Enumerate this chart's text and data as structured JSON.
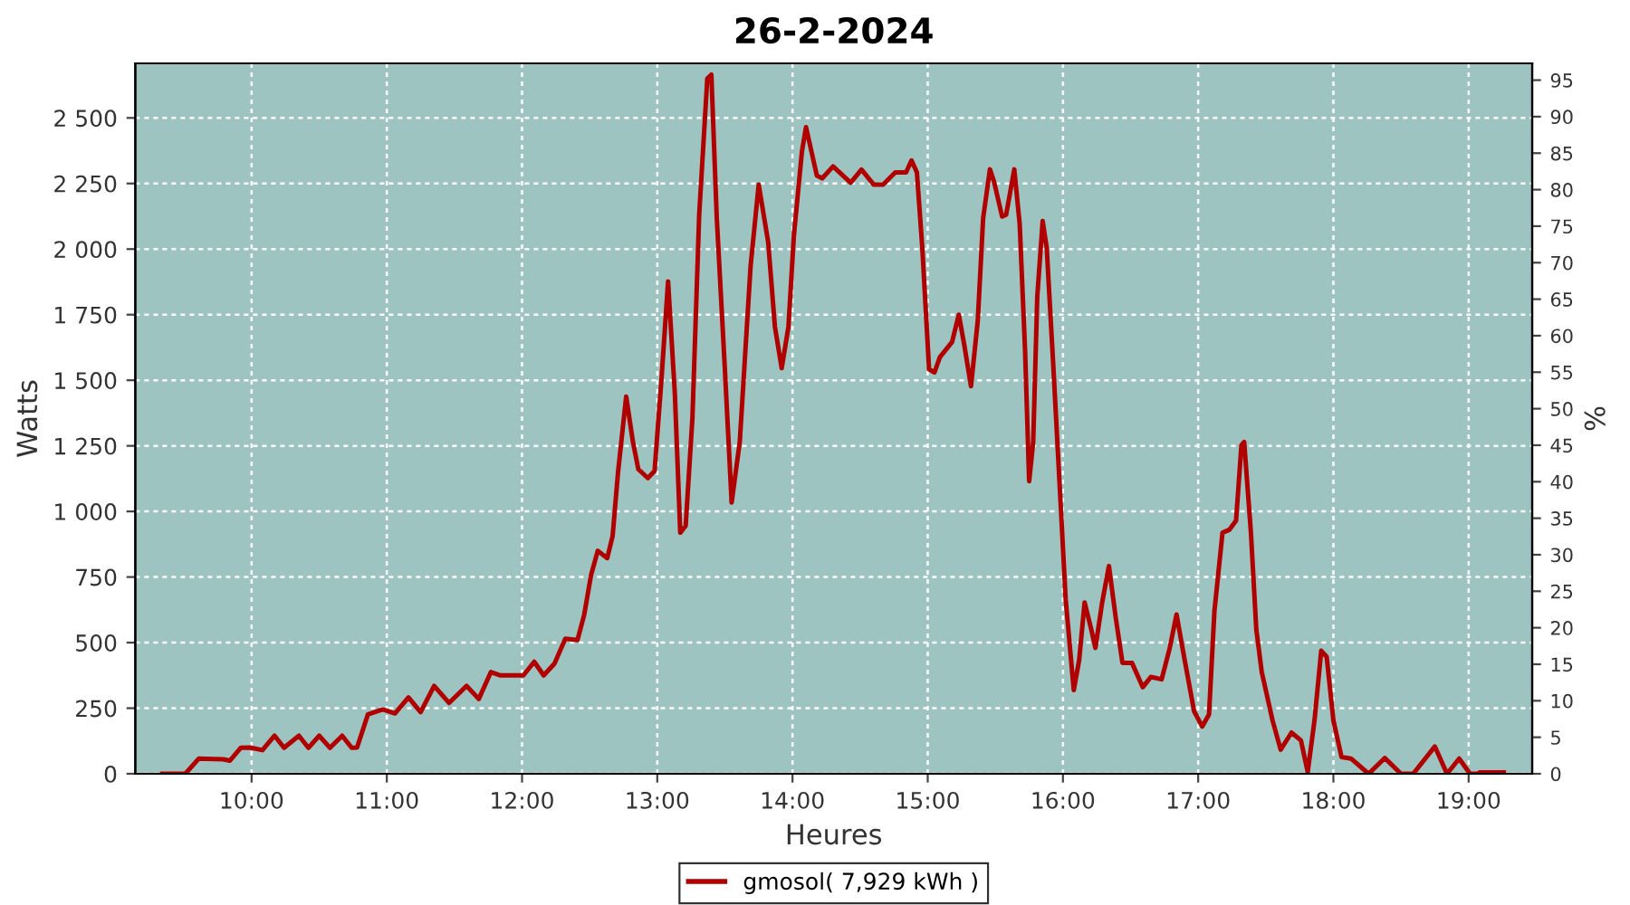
{
  "chart_data": {
    "type": "line",
    "title": "26-2-2024",
    "xlabel": "Heures",
    "ylabel": "Watts",
    "y2label": "%",
    "xlim": [
      9.14,
      19.47
    ],
    "xticks": [
      {
        "value": 10,
        "label": "10:00"
      },
      {
        "value": 11,
        "label": "11:00"
      },
      {
        "value": 12,
        "label": "12:00"
      },
      {
        "value": 13,
        "label": "13:00"
      },
      {
        "value": 14,
        "label": "14:00"
      },
      {
        "value": 15,
        "label": "15:00"
      },
      {
        "value": 16,
        "label": "16:00"
      },
      {
        "value": 17,
        "label": "17:00"
      },
      {
        "value": 18,
        "label": "18:00"
      },
      {
        "value": 19,
        "label": "19:00"
      }
    ],
    "ylim": [
      0,
      2708
    ],
    "yticks": [
      0,
      250,
      500,
      750,
      {
        "value": 1000,
        "label": "1 000"
      },
      {
        "value": 1250,
        "label": "1 250"
      },
      {
        "value": 1500,
        "label": "1 500"
      },
      {
        "value": 1750,
        "label": "1 750"
      },
      {
        "value": 2000,
        "label": "2 000"
      },
      {
        "value": 2250,
        "label": "2 250"
      },
      {
        "value": 2500,
        "label": "2 500"
      }
    ],
    "y2lim": [
      0,
      97.3
    ],
    "y2ticks": [
      0,
      5,
      10,
      15,
      20,
      25,
      30,
      35,
      40,
      45,
      50,
      55,
      60,
      65,
      70,
      75,
      80,
      85,
      90,
      95
    ],
    "grid": true,
    "legend": "bottom",
    "marker": "none",
    "line_style": "solid",
    "series": [
      {
        "name": "gmosol( 7,929 kWh )",
        "color": "#b00000",
        "x": [
          9.34,
          9.51,
          9.61,
          9.79,
          9.84,
          9.92,
          9.99,
          10.08,
          10.17,
          10.24,
          10.35,
          10.42,
          10.5,
          10.58,
          10.67,
          10.74,
          10.78,
          10.86,
          10.97,
          11.06,
          11.16,
          11.25,
          11.35,
          11.46,
          11.59,
          11.68,
          11.77,
          11.84,
          12.01,
          12.09,
          12.16,
          12.24,
          12.32,
          12.41,
          12.46,
          12.51,
          12.56,
          12.63,
          12.67,
          12.71,
          12.77,
          12.82,
          12.86,
          12.93,
          12.98,
          13.03,
          13.08,
          13.13,
          13.17,
          13.21,
          13.26,
          13.31,
          13.37,
          13.4,
          13.44,
          13.5,
          13.55,
          13.61,
          13.69,
          13.75,
          13.82,
          13.87,
          13.92,
          13.97,
          14.01,
          14.07,
          14.1,
          14.18,
          14.22,
          14.3,
          14.43,
          14.51,
          14.6,
          14.67,
          14.76,
          14.84,
          14.88,
          14.92,
          14.96,
          15.01,
          15.05,
          15.09,
          15.18,
          15.23,
          15.27,
          15.32,
          15.37,
          15.41,
          15.46,
          15.49,
          15.55,
          15.58,
          15.64,
          15.68,
          15.72,
          15.75,
          15.78,
          15.81,
          15.85,
          15.88,
          15.93,
          15.98,
          16.02,
          16.08,
          16.12,
          16.16,
          16.21,
          16.24,
          16.29,
          16.34,
          16.39,
          16.44,
          16.51,
          16.59,
          16.65,
          16.73,
          16.79,
          16.84,
          16.9,
          16.97,
          17.03,
          17.08,
          17.12,
          17.18,
          17.23,
          17.28,
          17.32,
          17.34,
          17.39,
          17.43,
          17.47,
          17.55,
          17.61,
          17.69,
          17.76,
          17.81,
          17.86,
          17.91,
          17.95,
          18.0,
          18.06,
          18.13,
          18.26,
          18.38,
          18.5,
          18.59,
          18.75,
          18.84,
          18.93,
          19.01,
          19.07,
          19.08,
          19.26
        ],
        "values": [
          0,
          0,
          58,
          55,
          50,
          99,
          100,
          90,
          145,
          99,
          145,
          99,
          145,
          99,
          145,
          99,
          100,
          226,
          245,
          230,
          291,
          235,
          335,
          270,
          335,
          285,
          388,
          375,
          375,
          427,
          375,
          420,
          515,
          510,
          607,
          757,
          850,
          822,
          907,
          1150,
          1438,
          1265,
          1161,
          1127,
          1154,
          1496,
          1877,
          1449,
          919,
          945,
          1357,
          2131,
          2650,
          2665,
          2119,
          1542,
          1034,
          1265,
          1934,
          2246,
          2027,
          1704,
          1546,
          1704,
          2050,
          2373,
          2465,
          2280,
          2270,
          2315,
          2253,
          2303,
          2246,
          2246,
          2292,
          2292,
          2338,
          2292,
          2004,
          1542,
          1530,
          1588,
          1646,
          1750,
          1635,
          1477,
          1727,
          2119,
          2304,
          2258,
          2124,
          2131,
          2304,
          2096,
          1612,
          1115,
          1265,
          1819,
          2107,
          2004,
          1542,
          1057,
          665,
          319,
          434,
          653,
          549,
          480,
          653,
          792,
          596,
          423,
          423,
          330,
          369,
          360,
          480,
          607,
          434,
          238,
          180,
          226,
          619,
          919,
          930,
          965,
          1253,
          1265,
          919,
          549,
          388,
          203,
          92,
          157,
          127,
          7,
          203,
          469,
          446,
          203,
          64,
          58,
          0,
          60,
          0,
          0,
          104,
          0,
          58,
          0,
          0,
          5,
          5
        ]
      }
    ]
  }
}
